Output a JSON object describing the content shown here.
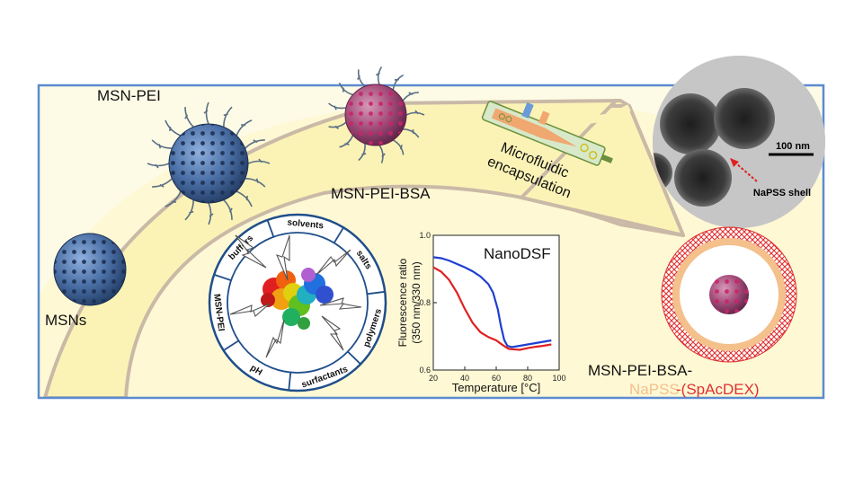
{
  "labels": {
    "msns": "MSNs",
    "msn_pei": "MSN-PEI",
    "msn_pei_bsa": "MSN-PEI-BSA",
    "microfluidic_line1": "Microfluidic",
    "microfluidic_line2": "encapsulation",
    "final_line1": "MSN-PEI-BSA-",
    "final_napss": "NaPSS",
    "final_spacdex": "-(SpAcDEX)"
  },
  "tem": {
    "scale_bar": "100 nm",
    "shell_label": "NaPSS shell"
  },
  "stress_wheel": {
    "segments": [
      "solvents",
      "salts",
      "polymers",
      "surfactants",
      "pH",
      "MSN-PEI",
      "buffers"
    ]
  },
  "colors": {
    "frame": "#5b8bd0",
    "band_fill": "#fbf6c2",
    "band_edge": "#c9b9a6",
    "particle": "#4a6fa5",
    "bsa_particle": "#b04a7d",
    "napss": "#f4c08c",
    "spacdex": "#e03030",
    "wheel": "#1f4e8a"
  },
  "chart_data": {
    "type": "line",
    "title": "NanoDSF",
    "xlabel": "Temperature [°C]",
    "ylabel": "Fluorescence ratio (350 nm/330 nm)",
    "xlim": [
      20,
      100
    ],
    "ylim": [
      0.6,
      1.0
    ],
    "xticks": [
      20,
      40,
      60,
      80,
      100
    ],
    "yticks": [
      0.6,
      0.8,
      1.0
    ],
    "series": [
      {
        "color": "#1f3fd0",
        "x": [
          20,
          25,
          30,
          35,
          40,
          45,
          50,
          55,
          58,
          61,
          63,
          65,
          67,
          70,
          75,
          80,
          85,
          90,
          95
        ],
        "y": [
          0.935,
          0.932,
          0.925,
          0.915,
          0.905,
          0.893,
          0.878,
          0.855,
          0.83,
          0.78,
          0.73,
          0.69,
          0.672,
          0.668,
          0.672,
          0.676,
          0.68,
          0.684,
          0.688
        ]
      },
      {
        "color": "#e02020",
        "x": [
          20,
          25,
          30,
          35,
          40,
          45,
          50,
          55,
          60,
          63,
          66,
          68,
          70,
          75,
          80,
          85,
          90,
          95
        ],
        "y": [
          0.905,
          0.892,
          0.868,
          0.83,
          0.782,
          0.74,
          0.712,
          0.698,
          0.688,
          0.678,
          0.668,
          0.663,
          0.662,
          0.66,
          0.665,
          0.669,
          0.672,
          0.676
        ]
      }
    ]
  }
}
